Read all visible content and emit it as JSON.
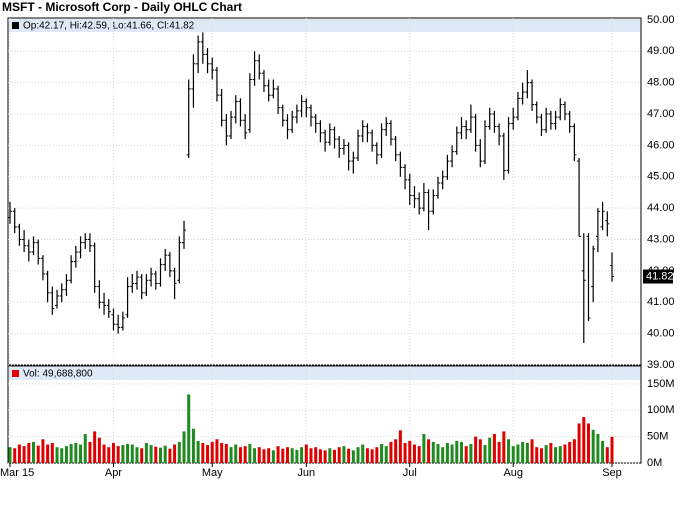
{
  "chart_data": {
    "type": "ohlc",
    "title": "MSFT - Microsoft Corp - Daily OHLC Chart",
    "price_legend": "Op:42.17, Hi:42.59, Lo:41.66, Cl:41.82",
    "volume_legend": "Vol: 49,688,800",
    "categories": [
      "Mar 15",
      null,
      null,
      null,
      null,
      null,
      null,
      null,
      null,
      null,
      null,
      null,
      null,
      null,
      null,
      null,
      null,
      null,
      null,
      null,
      null,
      null,
      "Apr",
      null,
      null,
      null,
      null,
      null,
      null,
      null,
      null,
      null,
      null,
      null,
      null,
      null,
      null,
      null,
      null,
      null,
      null,
      null,
      null,
      "May",
      null,
      null,
      null,
      null,
      null,
      null,
      null,
      null,
      null,
      null,
      null,
      null,
      null,
      null,
      null,
      null,
      null,
      null,
      null,
      "Jun",
      null,
      null,
      null,
      null,
      null,
      null,
      null,
      null,
      null,
      null,
      null,
      null,
      null,
      null,
      null,
      null,
      null,
      null,
      null,
      null,
      null,
      "Jul",
      null,
      null,
      null,
      null,
      null,
      null,
      null,
      null,
      null,
      null,
      null,
      null,
      null,
      null,
      null,
      null,
      null,
      null,
      null,
      null,
      null,
      "Aug",
      null,
      null,
      null,
      null,
      null,
      null,
      null,
      null,
      null,
      null,
      null,
      null,
      null,
      null,
      null,
      null,
      null,
      null,
      null,
      null,
      "Sep"
    ],
    "ohlc": [
      [
        43.7,
        44.2,
        43.5,
        43.9
      ],
      [
        43.9,
        44.0,
        43.2,
        43.4
      ],
      [
        43.4,
        43.5,
        42.8,
        43.0
      ],
      [
        43.0,
        43.3,
        42.6,
        42.8
      ],
      [
        42.8,
        43.0,
        42.3,
        42.6
      ],
      [
        42.6,
        43.1,
        42.5,
        42.9
      ],
      [
        42.9,
        43.0,
        42.2,
        42.4
      ],
      [
        42.4,
        42.5,
        41.7,
        41.9
      ],
      [
        41.9,
        42.0,
        41.0,
        41.3
      ],
      [
        41.3,
        41.5,
        40.6,
        40.8
      ],
      [
        40.9,
        41.4,
        40.8,
        41.2
      ],
      [
        41.2,
        41.6,
        41.0,
        41.4
      ],
      [
        41.4,
        41.9,
        41.2,
        41.7
      ],
      [
        41.7,
        42.5,
        41.6,
        42.3
      ],
      [
        42.3,
        42.8,
        42.1,
        42.6
      ],
      [
        42.6,
        43.1,
        42.4,
        42.9
      ],
      [
        42.9,
        43.2,
        42.7,
        43.0
      ],
      [
        43.0,
        43.2,
        42.6,
        42.8
      ],
      [
        42.8,
        42.9,
        41.3,
        41.5
      ],
      [
        41.5,
        41.7,
        40.8,
        41.0
      ],
      [
        41.0,
        41.3,
        40.6,
        40.9
      ],
      [
        40.9,
        41.1,
        40.5,
        40.7
      ],
      [
        40.6,
        40.8,
        40.1,
        40.3
      ],
      [
        40.3,
        40.6,
        40.0,
        40.2
      ],
      [
        40.2,
        40.7,
        40.1,
        40.5
      ],
      [
        40.6,
        41.8,
        40.5,
        41.5
      ],
      [
        41.5,
        41.9,
        41.3,
        41.6
      ],
      [
        41.6,
        42.0,
        41.4,
        41.8
      ],
      [
        41.8,
        41.9,
        41.1,
        41.3
      ],
      [
        41.3,
        41.9,
        41.2,
        41.7
      ],
      [
        41.7,
        42.1,
        41.5,
        41.9
      ],
      [
        41.9,
        42.0,
        41.4,
        41.6
      ],
      [
        41.6,
        42.4,
        41.5,
        42.2
      ],
      [
        42.2,
        42.7,
        42.0,
        42.5
      ],
      [
        42.5,
        42.6,
        41.8,
        42.0
      ],
      [
        42.0,
        42.1,
        41.1,
        41.6
      ],
      [
        41.7,
        43.1,
        41.6,
        42.9
      ],
      [
        42.9,
        43.6,
        42.7,
        43.3
      ],
      [
        45.7,
        48.1,
        45.6,
        47.8
      ],
      [
        47.8,
        48.9,
        47.2,
        48.6
      ],
      [
        48.6,
        49.5,
        48.3,
        49.3
      ],
      [
        49.3,
        49.6,
        48.6,
        48.9
      ],
      [
        48.9,
        49.1,
        48.3,
        48.6
      ],
      [
        48.6,
        48.8,
        48.1,
        48.4
      ],
      [
        48.4,
        48.5,
        47.4,
        47.6
      ],
      [
        47.6,
        47.8,
        46.6,
        46.8
      ],
      [
        46.8,
        47.0,
        46.0,
        46.3
      ],
      [
        46.3,
        47.1,
        46.2,
        46.9
      ],
      [
        46.9,
        47.6,
        46.7,
        47.4
      ],
      [
        47.4,
        47.5,
        46.6,
        46.8
      ],
      [
        46.8,
        47.0,
        46.2,
        46.4
      ],
      [
        46.5,
        48.3,
        46.4,
        48.1
      ],
      [
        48.1,
        49.0,
        47.9,
        48.7
      ],
      [
        48.7,
        48.9,
        48.1,
        48.3
      ],
      [
        48.3,
        48.4,
        47.7,
        47.9
      ],
      [
        47.9,
        48.1,
        47.4,
        47.6
      ],
      [
        47.6,
        48.1,
        47.5,
        47.8
      ],
      [
        47.8,
        47.9,
        47.0,
        47.2
      ],
      [
        47.2,
        47.3,
        46.6,
        46.8
      ],
      [
        46.8,
        47.0,
        46.2,
        46.5
      ],
      [
        46.5,
        47.1,
        46.4,
        46.9
      ],
      [
        46.9,
        47.3,
        46.7,
        47.1
      ],
      [
        47.1,
        47.6,
        46.9,
        47.4
      ],
      [
        47.4,
        47.5,
        46.9,
        47.2
      ],
      [
        47.2,
        47.3,
        46.6,
        46.9
      ],
      [
        46.9,
        47.0,
        46.4,
        46.7
      ],
      [
        46.7,
        46.8,
        46.1,
        46.4
      ],
      [
        46.4,
        46.5,
        45.8,
        46.1
      ],
      [
        46.1,
        46.7,
        46.0,
        46.5
      ],
      [
        46.5,
        46.6,
        45.9,
        46.2
      ],
      [
        46.2,
        46.3,
        45.6,
        45.9
      ],
      [
        45.9,
        46.2,
        45.7,
        46.0
      ],
      [
        46.0,
        46.1,
        45.2,
        45.5
      ],
      [
        45.5,
        45.8,
        45.1,
        45.6
      ],
      [
        45.6,
        46.5,
        45.5,
        46.3
      ],
      [
        46.3,
        46.8,
        46.1,
        46.6
      ],
      [
        46.6,
        46.7,
        46.1,
        46.4
      ],
      [
        46.4,
        46.5,
        45.8,
        46.0
      ],
      [
        46.0,
        46.1,
        45.4,
        45.7
      ],
      [
        45.7,
        46.7,
        45.6,
        46.5
      ],
      [
        46.5,
        46.9,
        46.3,
        46.7
      ],
      [
        46.7,
        46.8,
        46.0,
        46.2
      ],
      [
        46.2,
        46.3,
        45.5,
        45.7
      ],
      [
        45.7,
        45.8,
        45.0,
        45.3
      ],
      [
        45.3,
        45.4,
        44.6,
        44.9
      ],
      [
        44.9,
        45.1,
        44.1,
        44.4
      ],
      [
        44.4,
        44.7,
        44.0,
        44.3
      ],
      [
        44.3,
        44.5,
        43.8,
        44.0
      ],
      [
        44.0,
        44.8,
        43.9,
        44.5
      ],
      [
        44.5,
        44.6,
        43.3,
        43.9
      ],
      [
        43.9,
        44.6,
        43.8,
        44.4
      ],
      [
        44.4,
        45.0,
        44.3,
        44.8
      ],
      [
        44.8,
        45.2,
        44.6,
        45.0
      ],
      [
        45.0,
        45.7,
        44.9,
        45.5
      ],
      [
        45.5,
        46.0,
        45.3,
        45.8
      ],
      [
        45.8,
        46.6,
        45.7,
        46.4
      ],
      [
        46.4,
        46.9,
        46.2,
        46.6
      ],
      [
        46.6,
        46.8,
        46.2,
        46.5
      ],
      [
        46.5,
        47.3,
        46.4,
        46.9
      ],
      [
        46.9,
        47.0,
        45.8,
        46.0
      ],
      [
        46.0,
        46.2,
        45.3,
        45.5
      ],
      [
        45.5,
        46.8,
        45.4,
        46.6
      ],
      [
        46.6,
        47.2,
        46.5,
        47.0
      ],
      [
        47.0,
        47.1,
        46.4,
        46.6
      ],
      [
        46.6,
        46.7,
        46.0,
        46.3
      ],
      [
        46.3,
        46.4,
        44.9,
        45.2
      ],
      [
        45.2,
        46.9,
        45.1,
        46.7
      ],
      [
        46.7,
        47.2,
        46.5,
        46.9
      ],
      [
        46.9,
        47.7,
        46.8,
        47.5
      ],
      [
        47.5,
        48.0,
        47.3,
        47.7
      ],
      [
        47.7,
        48.4,
        47.5,
        48.0
      ],
      [
        48.0,
        48.1,
        47.1,
        47.3
      ],
      [
        47.3,
        47.4,
        46.7,
        46.9
      ],
      [
        46.9,
        47.0,
        46.3,
        46.5
      ],
      [
        46.5,
        47.2,
        46.4,
        47.0
      ],
      [
        47.0,
        47.1,
        46.5,
        46.7
      ],
      [
        46.7,
        47.1,
        46.5,
        46.9
      ],
      [
        46.9,
        47.5,
        46.8,
        47.3
      ],
      [
        47.3,
        47.4,
        46.8,
        47.0
      ],
      [
        47.0,
        47.1,
        46.4,
        46.6
      ],
      [
        46.6,
        46.7,
        45.5,
        45.7
      ],
      [
        45.5,
        45.6,
        43.1,
        43.1
      ],
      [
        42.0,
        43.2,
        39.7,
        41.7
      ],
      [
        43.1,
        43.2,
        40.4,
        40.5
      ],
      [
        41.5,
        42.8,
        41.0,
        42.7
      ],
      [
        43.1,
        44.0,
        42.6,
        43.9
      ],
      [
        43.4,
        44.2,
        43.3,
        43.9
      ],
      [
        43.6,
        43.9,
        43.1,
        43.5
      ],
      [
        42.17,
        42.59,
        41.66,
        41.82
      ]
    ],
    "last_price": 41.82,
    "volume": [
      30,
      28,
      35,
      32,
      38,
      40,
      33,
      45,
      35,
      38,
      30,
      28,
      32,
      36,
      38,
      35,
      55,
      40,
      60,
      48,
      35,
      30,
      38,
      32,
      34,
      36,
      35,
      30,
      28,
      38,
      34,
      31,
      29,
      33,
      27,
      35,
      40,
      60,
      130,
      65,
      42,
      38,
      34,
      40,
      45,
      38,
      36,
      30,
      35,
      30,
      32,
      36,
      28,
      30,
      26,
      28,
      24,
      32,
      27,
      30,
      28,
      25,
      30,
      35,
      28,
      30,
      26,
      24,
      28,
      25,
      30,
      32,
      27,
      24,
      30,
      35,
      28,
      26,
      30,
      36,
      32,
      40,
      45,
      62,
      38,
      42,
      35,
      32,
      55,
      45,
      40,
      36,
      30,
      38,
      35,
      42,
      40,
      32,
      36,
      50,
      45,
      34,
      48,
      55,
      40,
      60,
      45,
      32,
      35,
      40,
      38,
      45,
      30,
      28,
      34,
      38,
      30,
      32,
      35,
      40,
      45,
      75,
      87,
      75,
      63,
      55,
      42,
      30,
      49.6888
    ],
    "ylim": [
      39,
      50.06
    ],
    "yticks": [
      {
        "value": 39,
        "label": "39.00"
      },
      {
        "value": 40,
        "label": "40.00"
      },
      {
        "value": 41,
        "label": "41.00"
      },
      {
        "value": 42,
        "label": "42.00"
      },
      {
        "value": 43,
        "label": "43.00"
      },
      {
        "value": 44,
        "label": "44.00"
      },
      {
        "value": 45,
        "label": "45.00"
      },
      {
        "value": 46,
        "label": "46.00"
      },
      {
        "value": 47,
        "label": "47.00"
      },
      {
        "value": 48,
        "label": "48.00"
      },
      {
        "value": 49,
        "label": "49.00"
      },
      {
        "value": 50,
        "label": "50.00"
      }
    ],
    "y2lim": [
      0,
      184
    ],
    "y2ticks": [
      {
        "value": 0,
        "label": "0M"
      },
      {
        "value": 50,
        "label": "50M"
      },
      {
        "value": 100,
        "label": "100M"
      },
      {
        "value": 150,
        "label": "150M"
      }
    ],
    "bar_color": "#000000",
    "up_color": "#1f8a1f",
    "down_color": "#e00000",
    "grid": true
  }
}
